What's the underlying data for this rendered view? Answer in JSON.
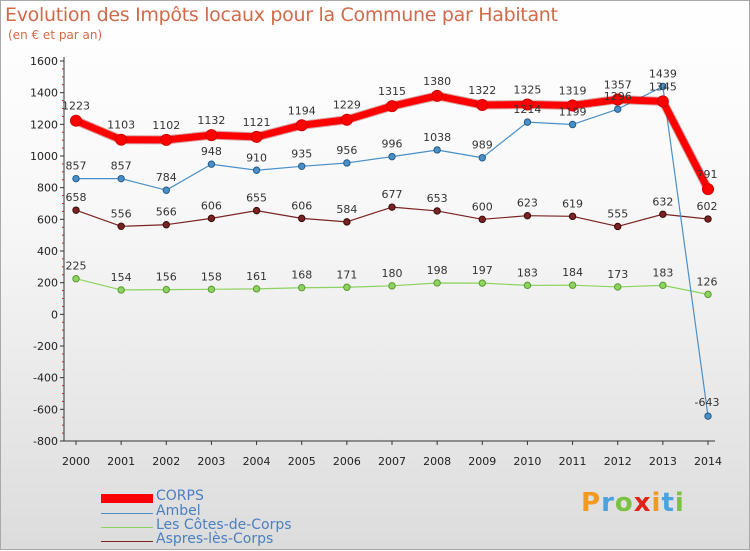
{
  "header": {
    "title": "Evolution des Impôts locaux pour la Commune par Habitant",
    "subtitle": "(en € et par an)"
  },
  "logo": {
    "letters": [
      "P",
      "r",
      "o",
      "x",
      "i",
      "t",
      "i"
    ],
    "colors": [
      "#f29a1f",
      "#4aa3df",
      "#7cc242",
      "#e2231a",
      "#f29a1f",
      "#4aa3df",
      "#7cc242"
    ]
  },
  "chart_data": {
    "type": "line",
    "x": [
      "2000",
      "2001",
      "2002",
      "2003",
      "2004",
      "2005",
      "2006",
      "2007",
      "2008",
      "2009",
      "2010",
      "2011",
      "2012",
      "2013",
      "2014"
    ],
    "ylim": [
      -800,
      1600
    ],
    "yticks": [
      -800,
      -600,
      -400,
      -200,
      0,
      200,
      400,
      600,
      800,
      1000,
      1200,
      1400,
      1600
    ],
    "grid": false,
    "legend_position": "bottom-left",
    "series": [
      {
        "name": "CORPS",
        "color": "#ff0000",
        "values": [
          1223,
          1103,
          1102,
          1132,
          1121,
          1194,
          1229,
          1315,
          1380,
          1322,
          1325,
          1319,
          1357,
          1345,
          791
        ]
      },
      {
        "name": "Ambel",
        "color": "#4a90c8",
        "values": [
          857,
          857,
          784,
          948,
          910,
          935,
          956,
          996,
          1038,
          989,
          1214,
          1199,
          1296,
          1439,
          -643
        ]
      },
      {
        "name": "Les Côtes-de-Corps",
        "color": "#8dd35f",
        "values": [
          225,
          154,
          156,
          158,
          161,
          168,
          171,
          180,
          198,
          197,
          183,
          184,
          173,
          183,
          126
        ]
      },
      {
        "name": "Aspres-lès-Corps",
        "color": "#7b2323",
        "values": [
          658,
          556,
          566,
          606,
          655,
          606,
          584,
          677,
          653,
          600,
          623,
          619,
          555,
          632,
          602
        ]
      }
    ]
  }
}
